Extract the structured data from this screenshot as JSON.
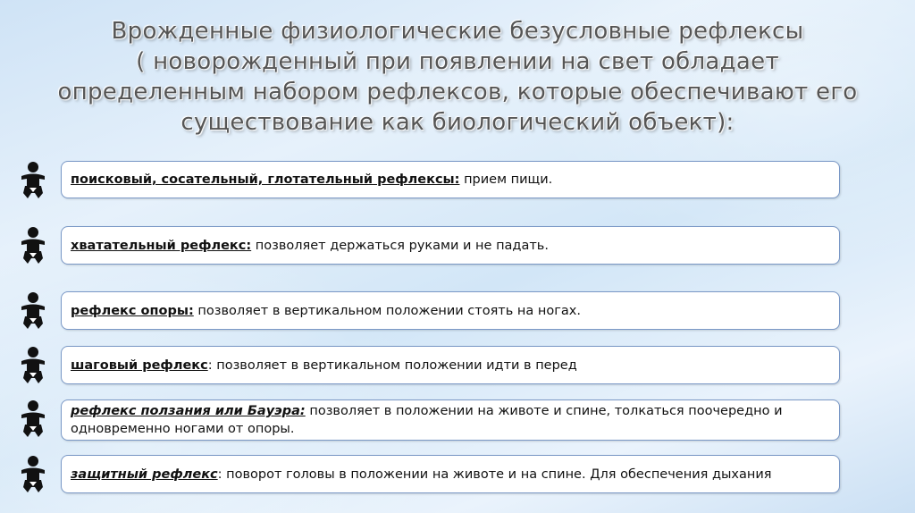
{
  "title": [
    "Врожденные физиологические безусловные рефлексы",
    "( новорожденный при появлении на свет обладает",
    "определенным набором рефлексов, которые обеспечивают его",
    "существование как биологический объект):"
  ],
  "items": [
    {
      "term": "поисковый, сосательный, глотательный рефлексы:",
      "text": " прием пищи.",
      "icon": "baby-icon"
    },
    {
      "term": "хватательный рефлекс:",
      "text": " позволяет держаться руками и не падать.",
      "icon": "baby-icon"
    },
    {
      "term": "рефлекс опоры:",
      "text": " позволяет в вертикальном положении стоять на ногах.",
      "icon": "baby-icon"
    },
    {
      "term": "шаговый рефлекс",
      "text": ": позволяет в вертикальном положении идти в перед",
      "icon": "baby-icon"
    },
    {
      "term": "рефлекс ползания или Бауэра:",
      "text": " позволяет в положении на животе и спине, толкаться поочередно и одновременно ногами от опоры.",
      "icon": "baby-icon"
    },
    {
      "term": "защитный рефлекс",
      "text": ": поворот головы в положении на животе и на спине. Для обеспечения дыхания",
      "icon": "baby-icon"
    }
  ]
}
